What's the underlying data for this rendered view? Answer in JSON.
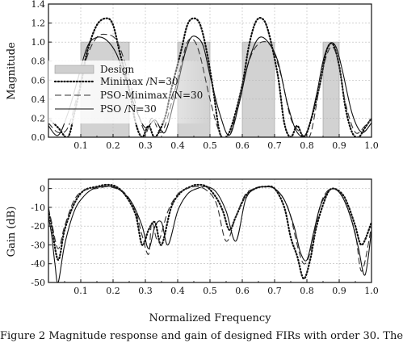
{
  "caption": "Figure 2 Magnitude response and gain of designed FIRs with order 30. The",
  "chart_data": [
    {
      "type": "line",
      "title": "",
      "xlabel": "",
      "ylabel": "Magnitude",
      "xlim": [
        0,
        1.0
      ],
      "ylim": [
        0,
        1.4
      ],
      "xticks": [
        "0.1",
        "0.2",
        "0.3",
        "0.4",
        "0.5",
        "0.6",
        "0.7",
        "0.8",
        "0.9",
        "1.0"
      ],
      "yticks": [
        "0.0",
        "0.2",
        "0.4",
        "0.6",
        "0.8",
        "1.0",
        "1.2",
        "1.4"
      ],
      "grid": true,
      "legend_placement": "top-left",
      "design_bands": [
        [
          0.1,
          0.25
        ],
        [
          0.4,
          0.5
        ],
        [
          0.6,
          0.7
        ],
        [
          0.85,
          0.9
        ]
      ],
      "design_level": 1.0,
      "series": [
        {
          "name": "Design",
          "style": "band"
        },
        {
          "name": "Minimax /N=30",
          "style": "dotted",
          "x": [
            0,
            0.03,
            0.06,
            0.08,
            0.1,
            0.12,
            0.15,
            0.18,
            0.2,
            0.22,
            0.25,
            0.27,
            0.29,
            0.31,
            0.33,
            0.36,
            0.38,
            0.41,
            0.43,
            0.45,
            0.47,
            0.49,
            0.51,
            0.53,
            0.55,
            0.57,
            0.6,
            0.62,
            0.64,
            0.66,
            0.68,
            0.71,
            0.73,
            0.75,
            0.77,
            0.79,
            0.81,
            0.84,
            0.86,
            0.88,
            0.9,
            0.92,
            0.94,
            0.96,
            0.98,
            1.0
          ],
          "y": [
            0.2,
            0.1,
            0.0,
            0.25,
            0.55,
            0.9,
            1.18,
            1.25,
            1.18,
            0.9,
            0.5,
            0.15,
            0.0,
            0.12,
            0.0,
            0.2,
            0.5,
            0.9,
            1.18,
            1.25,
            1.18,
            0.9,
            0.5,
            0.05,
            0.0,
            0.15,
            0.55,
            0.95,
            1.2,
            1.25,
            1.12,
            0.65,
            0.15,
            0.0,
            0.12,
            0.0,
            0.15,
            0.55,
            0.9,
            0.98,
            0.75,
            0.3,
            0.05,
            0.0,
            0.1,
            0.2
          ]
        },
        {
          "name": "PSO-Minimax /N=30",
          "style": "dashed",
          "x": [
            0,
            0.03,
            0.06,
            0.09,
            0.12,
            0.15,
            0.18,
            0.21,
            0.24,
            0.27,
            0.3,
            0.32,
            0.35,
            0.38,
            0.41,
            0.43,
            0.45,
            0.47,
            0.5,
            0.53,
            0.56,
            0.6,
            0.63,
            0.66,
            0.69,
            0.72,
            0.75,
            0.78,
            0.81,
            0.84,
            0.86,
            0.88,
            0.9,
            0.92,
            0.95,
            0.98,
            1.0
          ],
          "y": [
            0.15,
            0.05,
            0.1,
            0.45,
            0.85,
            1.05,
            1.08,
            1.02,
            0.75,
            0.35,
            0.05,
            0.2,
            0.05,
            0.35,
            0.75,
            1.0,
            1.02,
            0.85,
            0.4,
            0.05,
            0.0,
            0.55,
            0.88,
            1.0,
            0.95,
            0.65,
            0.2,
            0.05,
            0.02,
            0.55,
            0.85,
            0.95,
            0.75,
            0.35,
            0.05,
            0.12,
            0.2
          ]
        },
        {
          "name": "PSO /N=30",
          "style": "solid",
          "x": [
            0,
            0.03,
            0.06,
            0.09,
            0.12,
            0.15,
            0.18,
            0.21,
            0.24,
            0.27,
            0.3,
            0.33,
            0.36,
            0.39,
            0.42,
            0.44,
            0.46,
            0.48,
            0.5,
            0.53,
            0.56,
            0.59,
            0.62,
            0.65,
            0.68,
            0.71,
            0.74,
            0.77,
            0.8,
            0.83,
            0.85,
            0.87,
            0.89,
            0.91,
            0.94,
            0.97,
            1.0
          ],
          "y": [
            0.12,
            0.02,
            0.25,
            0.6,
            0.95,
            1.05,
            1.02,
            0.88,
            0.6,
            0.3,
            0.1,
            0.18,
            0.05,
            0.4,
            0.85,
            1.04,
            1.05,
            0.95,
            0.65,
            0.25,
            0.02,
            0.35,
            0.8,
            1.04,
            1.0,
            0.8,
            0.35,
            0.05,
            0.05,
            0.45,
            0.8,
            0.98,
            0.95,
            0.7,
            0.25,
            0.05,
            0.15
          ]
        }
      ]
    },
    {
      "type": "line",
      "title": "",
      "xlabel": "Normalized Frequency",
      "ylabel": "Gain (dB)",
      "xlim": [
        0,
        1.0
      ],
      "ylim": [
        -50,
        5
      ],
      "xticks": [
        "0.1",
        "0.2",
        "0.3",
        "0.4",
        "0.5",
        "0.6",
        "0.7",
        "0.8",
        "0.9",
        "1.0"
      ],
      "yticks": [
        "-50",
        "-40",
        "-30",
        "-20",
        "-10",
        "0"
      ],
      "grid": true,
      "series": [
        {
          "name": "Minimax /N=30",
          "style": "dotted",
          "x": [
            0,
            0.01,
            0.03,
            0.05,
            0.08,
            0.11,
            0.15,
            0.18,
            0.21,
            0.24,
            0.27,
            0.29,
            0.31,
            0.33,
            0.35,
            0.38,
            0.41,
            0.44,
            0.46,
            0.49,
            0.52,
            0.54,
            0.56,
            0.58,
            0.61,
            0.64,
            0.67,
            0.7,
            0.73,
            0.75,
            0.77,
            0.79,
            0.81,
            0.83,
            0.86,
            0.88,
            0.91,
            0.93,
            0.95,
            0.97,
            1.0
          ],
          "y": [
            -12,
            -20,
            -38,
            -22,
            -8,
            -1,
            1,
            2,
            1,
            -4,
            -14,
            -30,
            -22,
            -18,
            -30,
            -10,
            -2,
            1,
            2,
            1,
            -5,
            -12,
            -22,
            -15,
            -4,
            0,
            1,
            0,
            -10,
            -26,
            -36,
            -48,
            -38,
            -20,
            -4,
            0,
            -3,
            -10,
            -20,
            -30,
            -18
          ]
        },
        {
          "name": "PSO-Minimax /N=30",
          "style": "dashed",
          "x": [
            0,
            0.01,
            0.03,
            0.05,
            0.08,
            0.11,
            0.15,
            0.18,
            0.21,
            0.24,
            0.27,
            0.29,
            0.31,
            0.32,
            0.34,
            0.37,
            0.4,
            0.43,
            0.46,
            0.49,
            0.52,
            0.55,
            0.58,
            0.61,
            0.64,
            0.67,
            0.7,
            0.73,
            0.75,
            0.77,
            0.79,
            0.81,
            0.84,
            0.86,
            0.88,
            0.9,
            0.92,
            0.95,
            0.97,
            1.0
          ],
          "y": [
            -10,
            -18,
            -32,
            -20,
            -6,
            -1,
            0,
            1,
            0,
            -3,
            -12,
            -25,
            -35,
            -18,
            -28,
            -12,
            -3,
            0,
            1,
            -1,
            -8,
            -28,
            -15,
            -3,
            0,
            1,
            0,
            -6,
            -15,
            -30,
            -40,
            -34,
            -10,
            -2,
            0,
            -2,
            -8,
            -24,
            -44,
            -20
          ]
        },
        {
          "name": "PSO /N=30",
          "style": "solid",
          "x": [
            0,
            0.01,
            0.02,
            0.03,
            0.05,
            0.08,
            0.11,
            0.14,
            0.17,
            0.2,
            0.23,
            0.26,
            0.29,
            0.31,
            0.33,
            0.35,
            0.37,
            0.4,
            0.43,
            0.46,
            0.49,
            0.52,
            0.55,
            0.58,
            0.61,
            0.64,
            0.67,
            0.7,
            0.73,
            0.76,
            0.78,
            0.8,
            0.82,
            0.84,
            0.86,
            0.88,
            0.9,
            0.92,
            0.94,
            0.96,
            0.98,
            1.0
          ],
          "y": [
            -15,
            -25,
            -40,
            -50,
            -30,
            -12,
            -4,
            0,
            1,
            1,
            -2,
            -8,
            -20,
            -32,
            -20,
            -18,
            -30,
            -12,
            -3,
            0,
            1,
            -2,
            -12,
            -28,
            -6,
            0,
            1,
            0,
            -6,
            -20,
            -34,
            -38,
            -24,
            -10,
            -3,
            0,
            -2,
            -8,
            -18,
            -32,
            -46,
            -22
          ]
        }
      ]
    }
  ]
}
